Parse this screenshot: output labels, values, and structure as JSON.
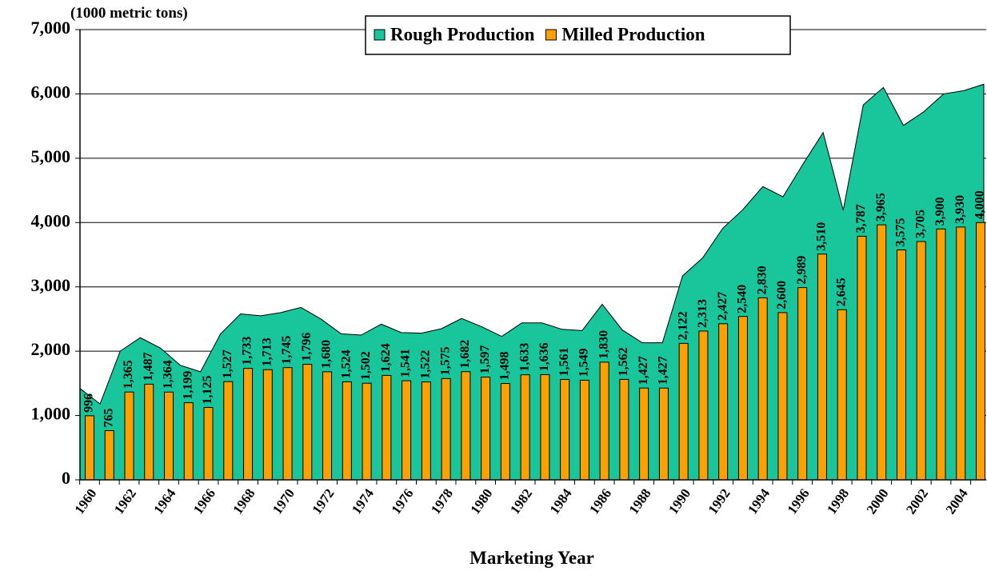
{
  "chart_data": {
    "type": "area-bar",
    "y_label": "(1000 metric tons)",
    "x_label": "Marketing Year",
    "categories": [
      "1960",
      null,
      "1962",
      null,
      "1964",
      null,
      "1966",
      null,
      "1968",
      null,
      "1970",
      null,
      "1972",
      null,
      "1974",
      null,
      "1976",
      null,
      "1978",
      null,
      "1980",
      null,
      "1982",
      null,
      "1984",
      null,
      "1986",
      null,
      "1988",
      null,
      "1990",
      null,
      "1992",
      null,
      "1994",
      null,
      "1996",
      null,
      "1998",
      null,
      "2000",
      null,
      "2002",
      null,
      "2004",
      null
    ],
    "series": [
      {
        "name": "Rough Production",
        "type": "area",
        "color": "#19c59b",
        "values": [
          1420,
          1180,
          2000,
          2210,
          2050,
          1780,
          1680,
          2270,
          2580,
          2550,
          2600,
          2680,
          2500,
          2270,
          2250,
          2420,
          2290,
          2280,
          2350,
          2510,
          2380,
          2230,
          2440,
          2440,
          2340,
          2320,
          2730,
          2330,
          2130,
          2130,
          3170,
          3450,
          3910,
          4200,
          4560,
          4400,
          4910,
          5400,
          4190,
          5830,
          6100,
          5510,
          5720,
          6000,
          6050,
          6150
        ]
      },
      {
        "name": "Milled Production",
        "type": "bar",
        "color": "#ffa000",
        "values": [
          996,
          765,
          1365,
          1487,
          1364,
          1199,
          1125,
          1527,
          1733,
          1713,
          1745,
          1796,
          1680,
          1524,
          1502,
          1624,
          1541,
          1522,
          1575,
          1682,
          1597,
          1498,
          1633,
          1636,
          1561,
          1549,
          1830,
          1562,
          1427,
          1427,
          2122,
          2313,
          2427,
          2540,
          2830,
          2600,
          2989,
          3510,
          2645,
          3787,
          3965,
          3575,
          3705,
          3900,
          3930,
          4000
        ],
        "value_labels": [
          "996",
          "765",
          "1,365",
          "1,487",
          "1,364",
          "1,199",
          "1,125",
          "1,527",
          "1,733",
          "1,713",
          "1,745",
          "1,796",
          "1,680",
          "1,524",
          "1,502",
          "1,624",
          "1,541",
          "1,522",
          "1,575",
          "1,682",
          "1,597",
          "1,498",
          "1,633",
          "1,636",
          "1,561",
          "1,549",
          "1,830",
          "1,562",
          "1,427",
          "1,427",
          "2,122",
          "2,313",
          "2,427",
          "2,540",
          "2,830",
          "2,600",
          "2,989",
          "3,510",
          "2,645",
          "3,787",
          "3,965",
          "3,575",
          "3,705",
          "3,900",
          "3,930",
          "4,000"
        ]
      }
    ],
    "ylim": [
      0,
      7000
    ],
    "yticks": [
      0,
      {
        "value": 1000,
        "label": "1,000"
      },
      {
        "value": 2000,
        "label": "2,000"
      },
      {
        "value": 3000,
        "label": "3,000"
      },
      {
        "value": 4000,
        "label": "4,000"
      },
      {
        "value": 5000,
        "label": "5,000"
      },
      {
        "value": 6000,
        "label": "6,000"
      },
      {
        "value": 7000,
        "label": "7,000"
      }
    ],
    "grid": true,
    "legend": "top"
  }
}
